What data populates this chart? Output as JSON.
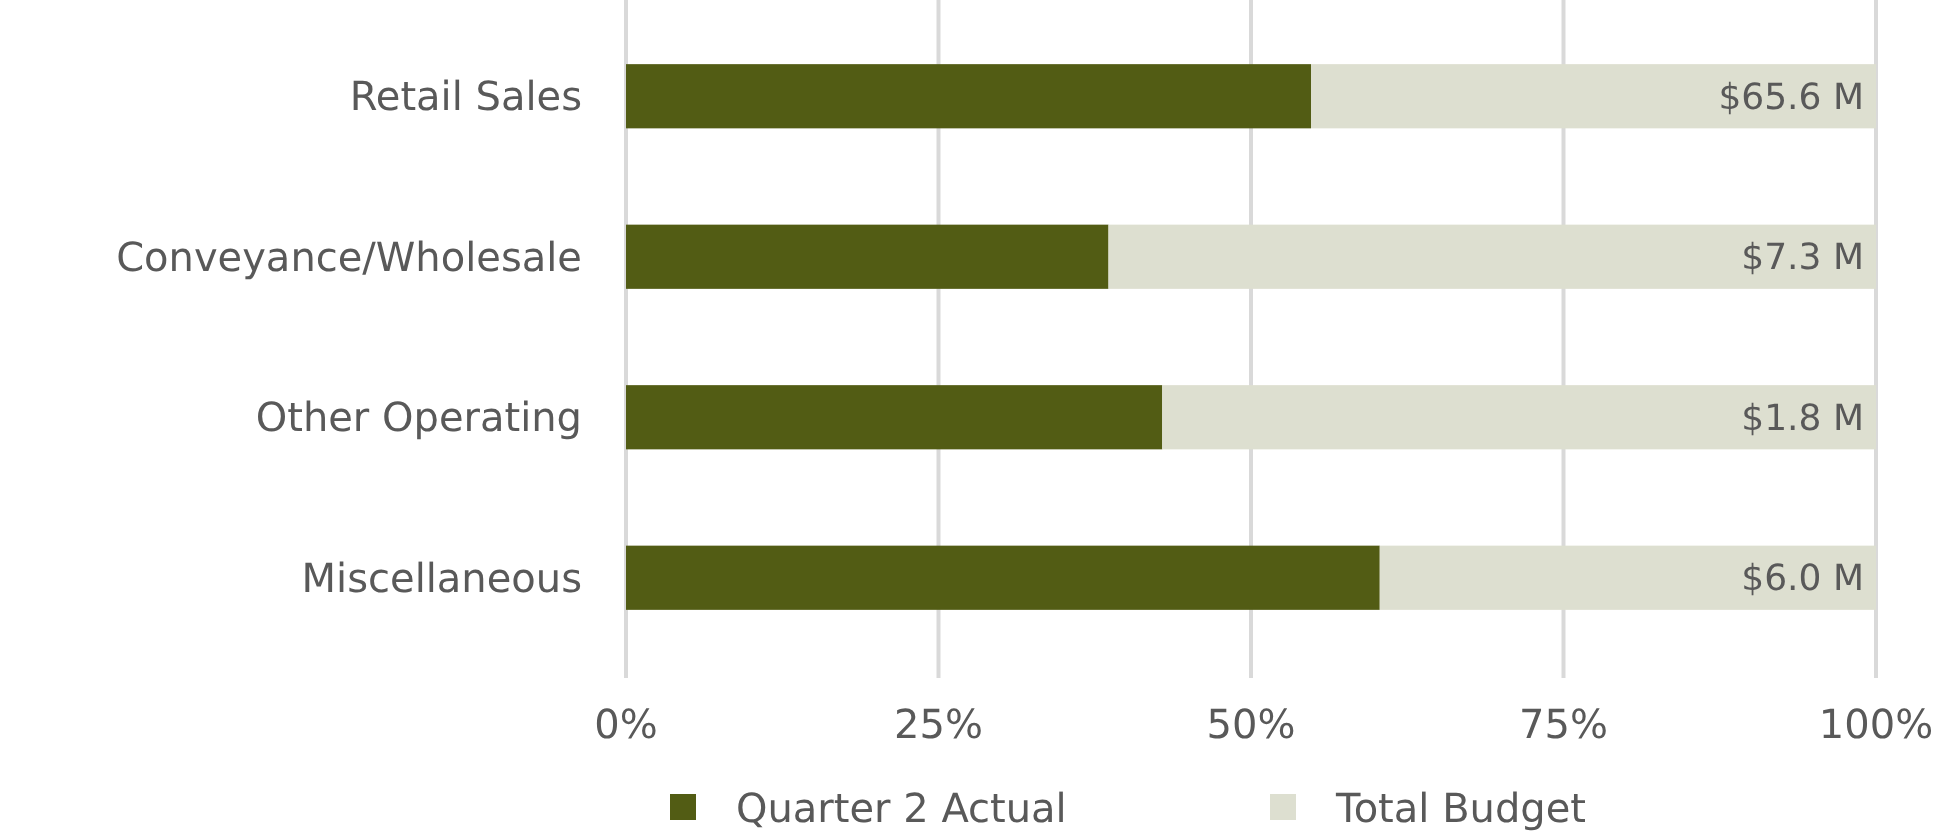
{
  "chart_data": {
    "type": "bar",
    "orientation": "horizontal",
    "stacked": true,
    "categories": [
      "Retail Sales",
      "Conveyance/Wholesale",
      "Other Operating",
      "Miscellaneous"
    ],
    "series": [
      {
        "name": "Quarter 2 Actual",
        "color": "#525c14",
        "values": [
          54.8,
          38.6,
          42.9,
          60.3
        ]
      },
      {
        "name": "Total Budget",
        "color": "#dddfd0",
        "values": [
          45.2,
          61.4,
          57.1,
          39.7
        ]
      }
    ],
    "annotations": [
      "$65.6 M",
      "$7.3 M",
      "$1.8 M",
      "$6.0 M"
    ],
    "xlim": [
      0,
      100
    ],
    "xticks": [
      {
        "value": 0,
        "label": "0%"
      },
      {
        "value": 25,
        "label": "25%"
      },
      {
        "value": 50,
        "label": "50%"
      },
      {
        "value": 75,
        "label": "75%"
      },
      {
        "value": 100,
        "label": "100%"
      }
    ],
    "grid": "x",
    "legend": "bottom"
  }
}
